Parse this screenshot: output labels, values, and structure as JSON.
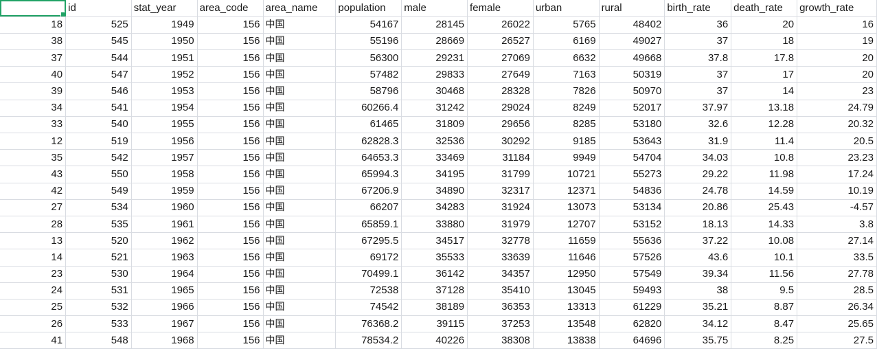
{
  "header": [
    "",
    "id",
    "stat_year",
    "area_code",
    "area_name",
    "population",
    "male",
    "female",
    "urban",
    "rural",
    "birth_rate",
    "death_rate",
    "growth_rate"
  ],
  "rows": [
    [
      "18",
      "525",
      "1949",
      "156",
      "中国",
      "54167",
      "28145",
      "26022",
      "5765",
      "48402",
      "36",
      "20",
      "16"
    ],
    [
      "38",
      "545",
      "1950",
      "156",
      "中国",
      "55196",
      "28669",
      "26527",
      "6169",
      "49027",
      "37",
      "18",
      "19"
    ],
    [
      "37",
      "544",
      "1951",
      "156",
      "中国",
      "56300",
      "29231",
      "27069",
      "6632",
      "49668",
      "37.8",
      "17.8",
      "20"
    ],
    [
      "40",
      "547",
      "1952",
      "156",
      "中国",
      "57482",
      "29833",
      "27649",
      "7163",
      "50319",
      "37",
      "17",
      "20"
    ],
    [
      "39",
      "546",
      "1953",
      "156",
      "中国",
      "58796",
      "30468",
      "28328",
      "7826",
      "50970",
      "37",
      "14",
      "23"
    ],
    [
      "34",
      "541",
      "1954",
      "156",
      "中国",
      "60266.4",
      "31242",
      "29024",
      "8249",
      "52017",
      "37.97",
      "13.18",
      "24.79"
    ],
    [
      "33",
      "540",
      "1955",
      "156",
      "中国",
      "61465",
      "31809",
      "29656",
      "8285",
      "53180",
      "32.6",
      "12.28",
      "20.32"
    ],
    [
      "12",
      "519",
      "1956",
      "156",
      "中国",
      "62828.3",
      "32536",
      "30292",
      "9185",
      "53643",
      "31.9",
      "11.4",
      "20.5"
    ],
    [
      "35",
      "542",
      "1957",
      "156",
      "中国",
      "64653.3",
      "33469",
      "31184",
      "9949",
      "54704",
      "34.03",
      "10.8",
      "23.23"
    ],
    [
      "43",
      "550",
      "1958",
      "156",
      "中国",
      "65994.3",
      "34195",
      "31799",
      "10721",
      "55273",
      "29.22",
      "11.98",
      "17.24"
    ],
    [
      "42",
      "549",
      "1959",
      "156",
      "中国",
      "67206.9",
      "34890",
      "32317",
      "12371",
      "54836",
      "24.78",
      "14.59",
      "10.19"
    ],
    [
      "27",
      "534",
      "1960",
      "156",
      "中国",
      "66207",
      "34283",
      "31924",
      "13073",
      "53134",
      "20.86",
      "25.43",
      "-4.57"
    ],
    [
      "28",
      "535",
      "1961",
      "156",
      "中国",
      "65859.1",
      "33880",
      "31979",
      "12707",
      "53152",
      "18.13",
      "14.33",
      "3.8"
    ],
    [
      "13",
      "520",
      "1962",
      "156",
      "中国",
      "67295.5",
      "34517",
      "32778",
      "11659",
      "55636",
      "37.22",
      "10.08",
      "27.14"
    ],
    [
      "14",
      "521",
      "1963",
      "156",
      "中国",
      "69172",
      "35533",
      "33639",
      "11646",
      "57526",
      "43.6",
      "10.1",
      "33.5"
    ],
    [
      "23",
      "530",
      "1964",
      "156",
      "中国",
      "70499.1",
      "36142",
      "34357",
      "12950",
      "57549",
      "39.34",
      "11.56",
      "27.78"
    ],
    [
      "24",
      "531",
      "1965",
      "156",
      "中国",
      "72538",
      "37128",
      "35410",
      "13045",
      "59493",
      "38",
      "9.5",
      "28.5"
    ],
    [
      "25",
      "532",
      "1966",
      "156",
      "中国",
      "74542",
      "38189",
      "36353",
      "13313",
      "61229",
      "35.21",
      "8.87",
      "26.34"
    ],
    [
      "26",
      "533",
      "1967",
      "156",
      "中国",
      "76368.2",
      "39115",
      "37253",
      "13548",
      "62820",
      "34.12",
      "8.47",
      "25.65"
    ],
    [
      "41",
      "548",
      "1968",
      "156",
      "中国",
      "78534.2",
      "40226",
      "38308",
      "13838",
      "64696",
      "35.75",
      "8.25",
      "27.5"
    ]
  ],
  "theme": {
    "selection": "#21a366",
    "gridline": "#d9dce2"
  }
}
